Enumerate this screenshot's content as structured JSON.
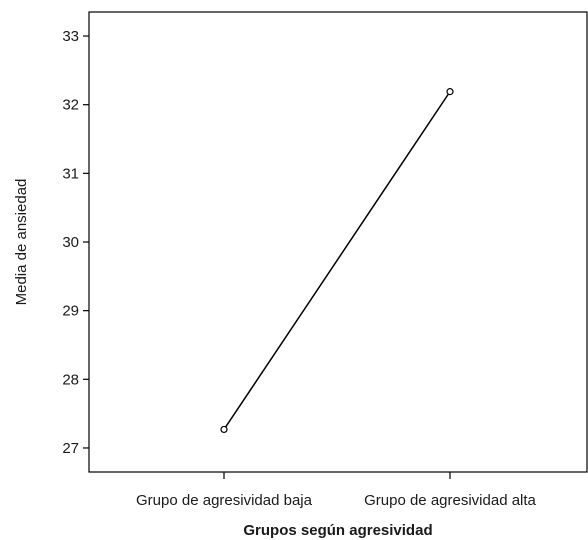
{
  "chart_data": {
    "type": "line",
    "categories": [
      "Grupo de agresividad baja",
      "Grupo de agresividad alta"
    ],
    "series": [
      {
        "values": [
          27.27,
          32.19
        ]
      }
    ],
    "xlabel": "Grupos según agresividad",
    "ylabel": "Media de ansiedad",
    "ylim": [
      26.65,
      33.35
    ],
    "yticks": [
      27,
      28,
      29,
      30,
      31,
      32,
      33
    ],
    "grid": false,
    "legend": "none",
    "line_color": "#000000",
    "marker": "open-circle"
  }
}
